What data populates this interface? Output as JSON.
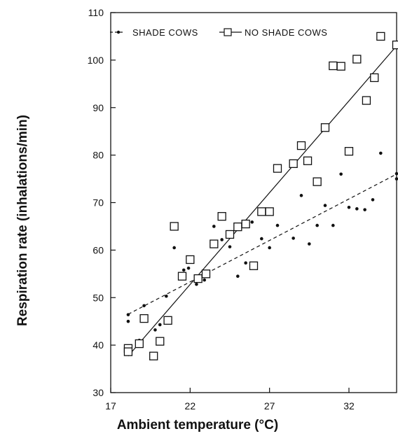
{
  "chart_data": {
    "type": "scatter",
    "xlabel": "Ambient temperature (°C)",
    "ylabel": "Respiration rate (inhalations/min)",
    "xlim": [
      17,
      35
    ],
    "ylim": [
      30,
      110
    ],
    "xticks": [
      17,
      22,
      27,
      32
    ],
    "yticks": [
      30,
      40,
      50,
      60,
      70,
      80,
      90,
      100,
      110
    ],
    "grid": false,
    "legend_position": "top",
    "series": [
      {
        "name": "SHADE COWS",
        "marker": "dot",
        "line_style": "dashed",
        "trend": [
          [
            18.1,
            46.5
          ],
          [
            35,
            76
          ]
        ],
        "points": [
          [
            18.1,
            46.4
          ],
          [
            18.1,
            45.0
          ],
          [
            18.8,
            41.0
          ],
          [
            19.1,
            48.3
          ],
          [
            19.8,
            43.2
          ],
          [
            20.5,
            50.3
          ],
          [
            20.1,
            44.3
          ],
          [
            21.0,
            60.5
          ],
          [
            21.6,
            55.8
          ],
          [
            21.9,
            56.2
          ],
          [
            22.4,
            52.8
          ],
          [
            22.9,
            53.7
          ],
          [
            23.5,
            65.0
          ],
          [
            24.0,
            62.2
          ],
          [
            24.5,
            60.7
          ],
          [
            25.0,
            54.5
          ],
          [
            25.5,
            57.3
          ],
          [
            25.9,
            65.9
          ],
          [
            26.5,
            62.4
          ],
          [
            27.0,
            60.5
          ],
          [
            27.5,
            65.2
          ],
          [
            28.5,
            62.5
          ],
          [
            29.0,
            71.5
          ],
          [
            29.5,
            61.3
          ],
          [
            30.0,
            65.2
          ],
          [
            30.5,
            69.4
          ],
          [
            31.0,
            65.2
          ],
          [
            31.5,
            76.0
          ],
          [
            32.0,
            69.0
          ],
          [
            32.5,
            68.7
          ],
          [
            33.0,
            68.5
          ],
          [
            33.5,
            70.6
          ],
          [
            34.0,
            80.4
          ],
          [
            35.0,
            75.0
          ],
          [
            35.0,
            76.1
          ]
        ]
      },
      {
        "name": "NO SHADE COWS",
        "marker": "square",
        "line_style": "solid",
        "trend": [
          [
            18.1,
            37.7
          ],
          [
            35,
            103
          ]
        ],
        "points": [
          [
            18.1,
            39.3
          ],
          [
            18.1,
            38.6
          ],
          [
            18.8,
            40.3
          ],
          [
            19.1,
            45.6
          ],
          [
            19.7,
            37.7
          ],
          [
            20.1,
            40.8
          ],
          [
            20.6,
            45.2
          ],
          [
            21.0,
            65.0
          ],
          [
            21.5,
            54.5
          ],
          [
            22.0,
            58.0
          ],
          [
            22.5,
            54.0
          ],
          [
            23.0,
            55.0
          ],
          [
            23.5,
            61.3
          ],
          [
            24.0,
            67.1
          ],
          [
            24.5,
            63.3
          ],
          [
            25.0,
            64.9
          ],
          [
            25.5,
            65.5
          ],
          [
            26.0,
            56.7
          ],
          [
            26.5,
            68.1
          ],
          [
            27.0,
            68.1
          ],
          [
            27.5,
            77.2
          ],
          [
            28.5,
            78.2
          ],
          [
            29.0,
            82.0
          ],
          [
            29.4,
            78.8
          ],
          [
            30.0,
            74.4
          ],
          [
            30.5,
            85.8
          ],
          [
            31.0,
            98.8
          ],
          [
            31.5,
            98.7
          ],
          [
            32.0,
            80.8
          ],
          [
            32.5,
            100.2
          ],
          [
            33.1,
            91.5
          ],
          [
            33.6,
            96.3
          ],
          [
            34.0,
            105.0
          ],
          [
            35.0,
            103.2
          ]
        ]
      }
    ]
  }
}
